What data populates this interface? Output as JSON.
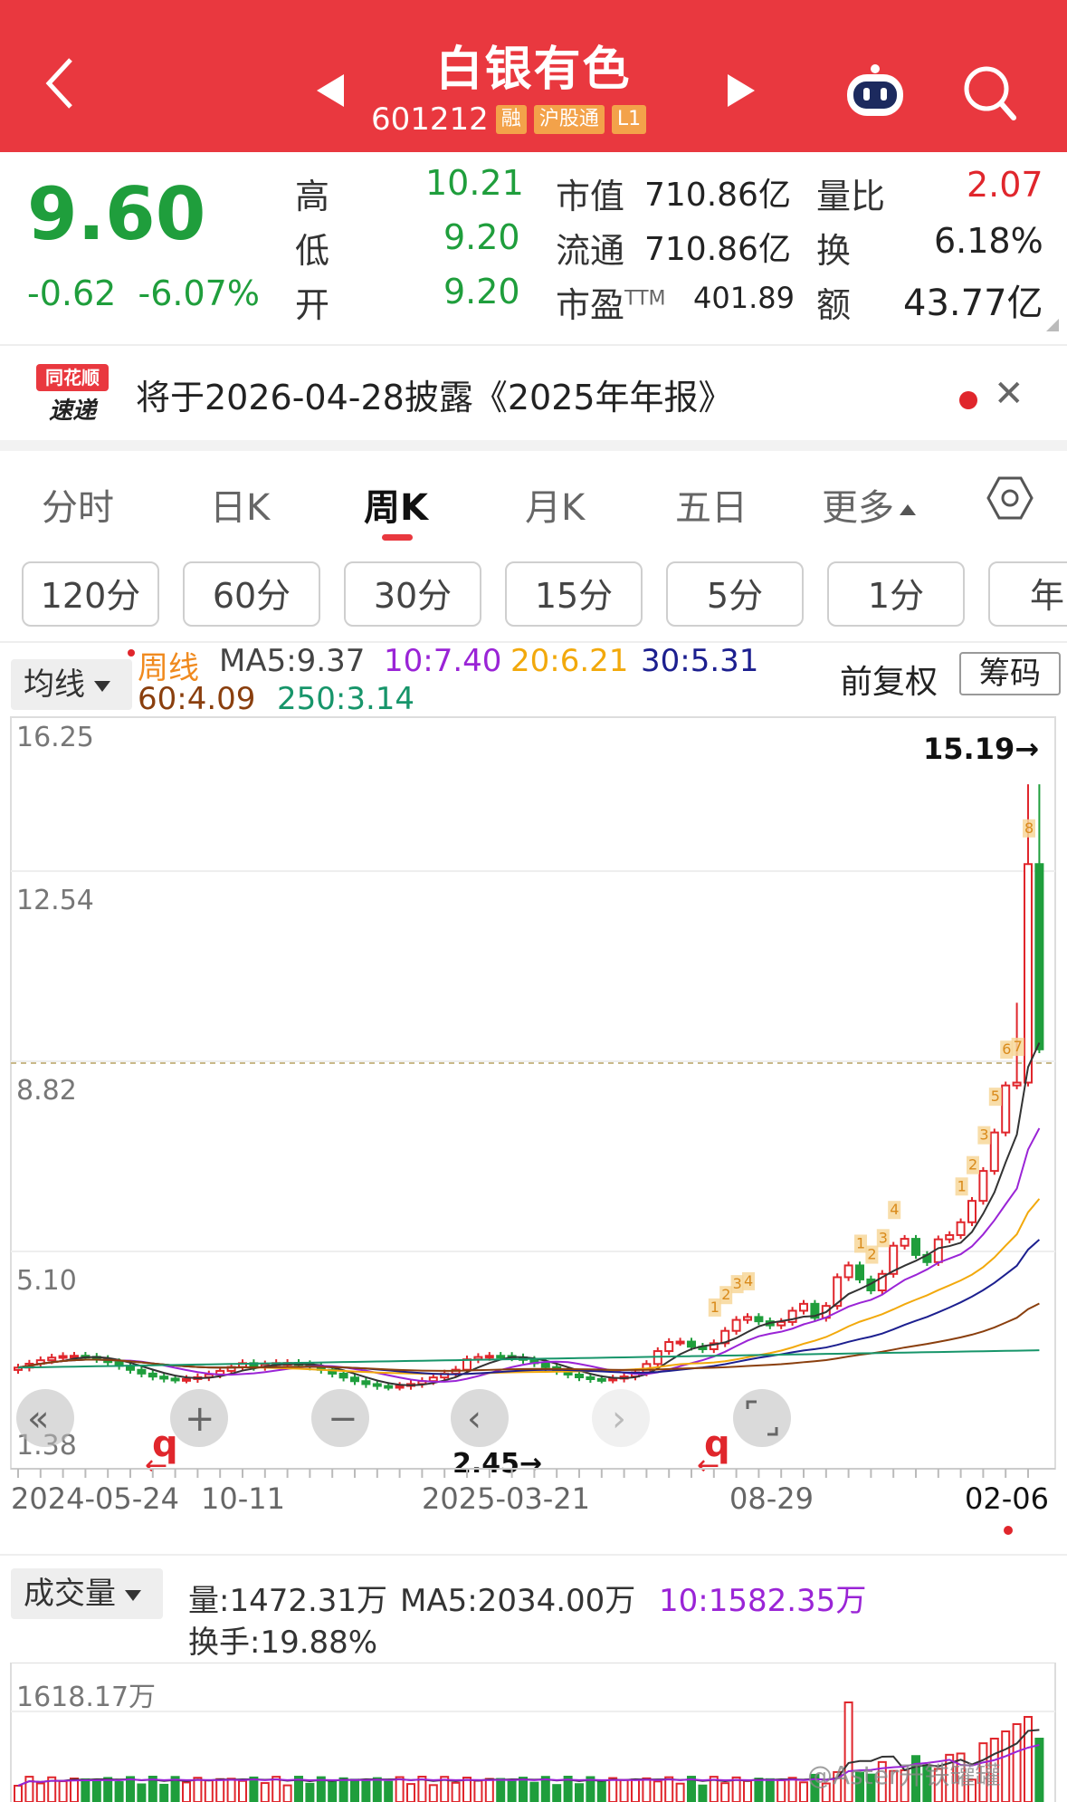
{
  "header": {
    "title": "白银有色",
    "code": "601212",
    "tags": [
      "融",
      "沪股通",
      "L1"
    ]
  },
  "quote": {
    "price": "9.60",
    "change": "-0.62",
    "change_pct": "-6.07%",
    "rows": [
      {
        "l1": "高",
        "v1": "10.21",
        "l2": "市值",
        "v2": "710.86亿",
        "l3": "量比",
        "v3": "2.07"
      },
      {
        "l1": "低",
        "v1": "9.20",
        "l2": "流通",
        "v2": "710.86亿",
        "l3": "换",
        "v3": "6.18%"
      },
      {
        "l1": "开",
        "v1": "9.20",
        "l2": "市盈",
        "l2sup": "TTM",
        "v2": "401.89",
        "l3": "额",
        "v3": "43.77亿"
      }
    ]
  },
  "notice": {
    "logo_top": "同花顺",
    "logo_bottom": "速递",
    "text": "将于2026-04-28披露《2025年年报》"
  },
  "tabs": [
    "分时",
    "日K",
    "周K",
    "月K",
    "五日",
    "更多"
  ],
  "periods": [
    "120分",
    "60分",
    "30分",
    "15分",
    "5分",
    "1分",
    "年"
  ],
  "ma": {
    "selector": "均线",
    "period": "周线",
    "ma5": "MA5:9.37",
    "ma10": "10:7.40",
    "ma20": "20:6.21",
    "ma30": "30:5.31",
    "ma60": "60:4.09",
    "ma250": "250:3.14",
    "adjust": "前复权",
    "chips": "筹码"
  },
  "chart": {
    "y_ticks": [
      "16.25",
      "12.54",
      "8.82",
      "5.10",
      "1.38"
    ],
    "x_ticks": [
      "2024-05-24",
      "10-11",
      "2025-03-21",
      "08-29",
      "02-06"
    ],
    "high_label": "15.19→",
    "low_label": "2.45→",
    "q_mark": "q"
  },
  "volume": {
    "selector": "成交量",
    "vol": "量:1472.31万",
    "ma5": "MA5:2034.00万",
    "ma10": "10:1582.35万",
    "turnover": "换手:19.88%",
    "y_tick": "1618.17万"
  },
  "watermark": "@Aster开铁罐罐",
  "colors": {
    "up": "#e0262c",
    "down": "#1f9e3c",
    "header": "#e9383f"
  }
}
